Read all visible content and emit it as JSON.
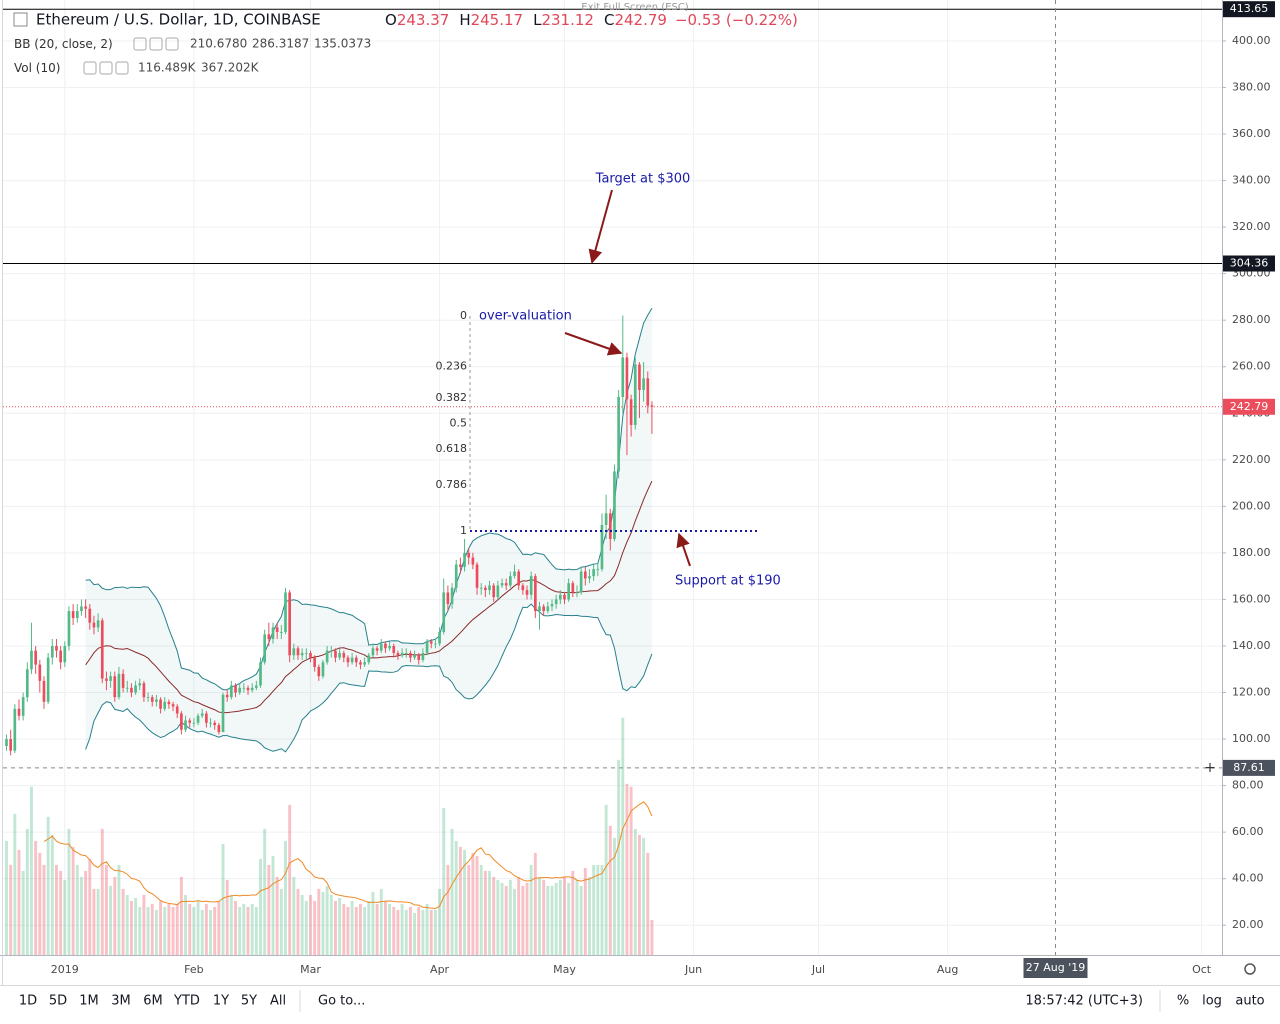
{
  "header": {
    "title": "Ethereum / U.S. Dollar, 1D, COINBASE",
    "ohlc": [
      {
        "name": "O",
        "value": 243.37
      },
      {
        "name": "H",
        "value": 245.17
      },
      {
        "name": "L",
        "value": 231.12
      },
      {
        "name": "C",
        "value": 242.79
      }
    ],
    "change": {
      "value": -0.53,
      "label": "−0.53"
    },
    "change_pct": {
      "value": -0.22,
      "label": "(−0.22%)"
    },
    "exit": "Exit Full Screen (ESC)"
  },
  "indicators": {
    "bb": {
      "name": "BB (20, close, 2)",
      "period": 20,
      "mult": 2,
      "values": [
        {
          "value": 210.678,
          "label": "210.6780",
          "color": "#8b2a2a"
        },
        {
          "value": 286.3187,
          "label": "286.3187",
          "color": "#26808c"
        },
        {
          "value": 135.0373,
          "label": "135.0373",
          "color": "#26808c"
        }
      ]
    },
    "vol": {
      "name": "Vol (10)",
      "period": 10,
      "values": [
        {
          "value": 116.489,
          "label": "116.489K",
          "color": "#e0475a"
        },
        {
          "value": 367.202,
          "label": "367.202K",
          "color": "#f08a24"
        }
      ]
    }
  },
  "chart_data": {
    "type": "candlestick",
    "open": [
      97,
      100,
      95,
      113,
      110,
      118,
      130,
      138,
      132,
      125,
      116,
      135,
      140,
      138,
      133,
      140,
      155,
      152,
      155,
      157,
      156,
      150,
      148,
      151,
      126,
      125,
      127,
      118,
      128,
      122,
      122,
      120,
      123,
      124,
      118,
      118,
      116,
      117,
      113,
      116,
      115,
      114,
      111,
      104,
      108,
      107,
      107,
      110,
      111,
      107,
      107,
      106,
      103,
      119,
      118,
      123,
      120,
      122,
      122,
      121,
      122,
      123,
      133,
      145,
      143,
      148,
      146,
      146,
      163,
      136,
      139,
      136,
      137,
      137,
      135,
      131,
      127,
      133,
      138,
      138,
      135,
      137,
      135,
      133,
      135,
      133,
      132,
      133,
      136,
      139,
      138,
      141,
      139,
      140,
      137,
      136,
      137,
      137,
      135,
      136,
      134,
      137,
      142,
      141,
      141,
      146,
      163,
      158,
      165,
      175,
      174,
      180,
      178,
      175,
      165,
      165,
      164,
      166,
      161,
      166,
      167,
      166,
      170,
      172,
      166,
      164,
      162,
      170,
      155,
      157,
      155,
      157,
      158,
      160,
      162,
      160,
      167,
      163,
      163,
      172,
      169,
      170,
      173,
      173,
      192,
      197,
      186,
      215,
      247,
      264,
      246,
      235,
      261,
      250,
      255,
      243.37
    ],
    "high": [
      102,
      104,
      115,
      117,
      120,
      133,
      150,
      140,
      134,
      127,
      137,
      143,
      143,
      140,
      142,
      157,
      158,
      158,
      160,
      160,
      158,
      153,
      154,
      152,
      129,
      129,
      129,
      131,
      130,
      125,
      124,
      125,
      126,
      125,
      120,
      119,
      119,
      118,
      118,
      117,
      116,
      115,
      112,
      110,
      109,
      109,
      111,
      113,
      112,
      109,
      108,
      107,
      120,
      121,
      125,
      124,
      124,
      124,
      123,
      124,
      125,
      135,
      147,
      150,
      150,
      150,
      149,
      165,
      164,
      141,
      140,
      139,
      139,
      138,
      136,
      132,
      134,
      140,
      140,
      139,
      139,
      138,
      136,
      137,
      136,
      134,
      135,
      137,
      141,
      140,
      143,
      142,
      142,
      141,
      138,
      139,
      139,
      138,
      138,
      137,
      139,
      143,
      143,
      143,
      148,
      169,
      166,
      167,
      177,
      178,
      186,
      182,
      180,
      176,
      167,
      166,
      168,
      167,
      168,
      169,
      169,
      172,
      175,
      173,
      167,
      166,
      172,
      171,
      159,
      158,
      159,
      160,
      162,
      164,
      163,
      169,
      168,
      166,
      174,
      174,
      173,
      175,
      176,
      197,
      205,
      199,
      218,
      250,
      282,
      266,
      248,
      264,
      262,
      262,
      258,
      245.17
    ],
    "low": [
      95,
      93,
      94,
      108,
      108,
      116,
      128,
      128,
      120,
      113,
      115,
      132,
      135,
      130,
      131,
      138,
      149,
      150,
      153,
      152,
      147,
      145,
      146,
      124,
      121,
      122,
      116,
      117,
      120,
      120,
      118,
      119,
      121,
      116,
      116,
      114,
      114,
      111,
      112,
      113,
      112,
      109,
      102,
      103,
      105,
      105,
      106,
      109,
      105,
      105,
      104,
      102,
      103,
      116,
      117,
      118,
      119,
      120,
      119,
      120,
      121,
      122,
      132,
      140,
      141,
      143,
      143,
      145,
      133,
      134,
      134,
      134,
      134,
      133,
      129,
      125,
      126,
      132,
      135,
      133,
      134,
      133,
      131,
      132,
      131,
      130,
      131,
      132,
      135,
      136,
      137,
      137,
      138,
      135,
      134,
      135,
      135,
      133,
      134,
      132,
      133,
      136,
      139,
      139,
      140,
      145,
      155,
      156,
      163,
      171,
      172,
      175,
      173,
      162,
      162,
      161,
      162,
      159,
      160,
      165,
      164,
      165,
      169,
      164,
      162,
      160,
      160,
      152,
      147,
      153,
      154,
      155,
      156,
      158,
      158,
      159,
      161,
      161,
      162,
      166,
      167,
      168,
      170,
      172,
      186,
      181,
      185,
      212,
      240,
      222,
      230,
      233,
      238,
      245,
      240,
      231.12
    ],
    "close": [
      100,
      95,
      113,
      110,
      118,
      130,
      138,
      132,
      125,
      116,
      135,
      140,
      138,
      133,
      140,
      155,
      152,
      155,
      157,
      156,
      150,
      148,
      151,
      126,
      125,
      127,
      118,
      128,
      122,
      122,
      120,
      123,
      124,
      118,
      118,
      116,
      117,
      113,
      116,
      115,
      114,
      111,
      104,
      108,
      107,
      107,
      110,
      111,
      107,
      107,
      106,
      103,
      119,
      118,
      123,
      120,
      122,
      122,
      121,
      122,
      123,
      133,
      145,
      143,
      148,
      146,
      146,
      163,
      136,
      139,
      136,
      137,
      137,
      135,
      131,
      127,
      133,
      138,
      138,
      135,
      137,
      135,
      133,
      135,
      133,
      132,
      133,
      136,
      139,
      138,
      141,
      139,
      140,
      137,
      136,
      137,
      137,
      135,
      136,
      134,
      137,
      142,
      141,
      141,
      146,
      163,
      158,
      165,
      175,
      174,
      180,
      178,
      175,
      165,
      165,
      164,
      166,
      161,
      166,
      167,
      166,
      170,
      172,
      166,
      164,
      162,
      170,
      155,
      157,
      155,
      157,
      158,
      160,
      162,
      160,
      167,
      163,
      163,
      172,
      169,
      170,
      173,
      173,
      192,
      197,
      186,
      215,
      247,
      264,
      246,
      235,
      261,
      250,
      255,
      243.32,
      242.79
    ],
    "volume": [
      380,
      300,
      470,
      350,
      280,
      420,
      560,
      380,
      340,
      300,
      460,
      400,
      300,
      280,
      250,
      420,
      360,
      300,
      260,
      280,
      320,
      220,
      220,
      420,
      300,
      230,
      260,
      300,
      220,
      200,
      180,
      190,
      160,
      200,
      160,
      170,
      150,
      180,
      160,
      170,
      160,
      170,
      260,
      200,
      170,
      160,
      180,
      150,
      170,
      150,
      160,
      180,
      370,
      250,
      200,
      180,
      160,
      170,
      160,
      170,
      160,
      320,
      420,
      300,
      330,
      260,
      220,
      380,
      500,
      260,
      220,
      200,
      180,
      200,
      180,
      220,
      210,
      230,
      200,
      180,
      190,
      170,
      160,
      180,
      160,
      170,
      160,
      180,
      210,
      170,
      220,
      180,
      170,
      160,
      150,
      170,
      150,
      160,
      140,
      160,
      150,
      170,
      150,
      150,
      220,
      490,
      300,
      420,
      380,
      360,
      350,
      300,
      340,
      330,
      300,
      280,
      280,
      260,
      250,
      240,
      230,
      250,
      220,
      260,
      230,
      240,
      300,
      340,
      260,
      250,
      230,
      230,
      240,
      250,
      260,
      240,
      280,
      250,
      230,
      290,
      260,
      300,
      300,
      300,
      500,
      430,
      390,
      650,
      790,
      570,
      560,
      420,
      400,
      390,
      340,
      116.489
    ],
    "up_color": "#53b987",
    "down_color": "#eb4d5c",
    "xlim": [
      -0.84,
      291.9
    ],
    "xticks": [
      {
        "value": 14,
        "label": "2019"
      },
      {
        "value": 45,
        "label": "Feb"
      },
      {
        "value": 73,
        "label": "Mar"
      },
      {
        "value": 104,
        "label": "Apr"
      },
      {
        "value": 134,
        "label": "May"
      },
      {
        "value": 165,
        "label": "Jun"
      },
      {
        "value": 195,
        "label": "Jul"
      },
      {
        "value": 226,
        "label": "Aug"
      },
      {
        "value": 287,
        "label": "Oct"
      }
    ],
    "ylim": [
      7.2,
      417.6
    ],
    "yticks": [
      {
        "value": 20,
        "label": "20.00"
      },
      {
        "value": 40,
        "label": "40.00"
      },
      {
        "value": 60,
        "label": "60.00"
      },
      {
        "value": 80,
        "label": "80.00"
      },
      {
        "value": 100,
        "label": "100.00"
      },
      {
        "value": 120,
        "label": "120.00"
      },
      {
        "value": 140,
        "label": "140.00"
      },
      {
        "value": 160,
        "label": "160.00"
      },
      {
        "value": 180,
        "label": "180.00"
      },
      {
        "value": 200,
        "label": "200.00"
      },
      {
        "value": 220,
        "label": "220.00"
      },
      {
        "value": 240,
        "label": "240.00"
      },
      {
        "value": 260,
        "label": "260.00"
      },
      {
        "value": 280,
        "label": "280.00"
      },
      {
        "value": 300,
        "label": "300.00"
      },
      {
        "value": 320,
        "label": "320.00"
      },
      {
        "value": 340,
        "label": "340.00"
      },
      {
        "value": 360,
        "label": "360.00"
      },
      {
        "value": 380,
        "label": "380.00"
      },
      {
        "value": 400,
        "label": "400.00"
      }
    ],
    "volume_lim": [
      0,
      3180
    ],
    "grid": true,
    "top_line": {
      "value": 413.65
    },
    "target_line": {
      "value": 304.36
    },
    "crosshair": {
      "price": 87.61,
      "date": "27 Aug '19"
    },
    "fib": {
      "levels": [
        0,
        0.236,
        0.382,
        0.5,
        0.618,
        0.786,
        1
      ],
      "range": [
        281.8,
        189.4
      ]
    },
    "annotations": [
      "Target at $300",
      "over-valuation",
      "Support at $190"
    ]
  },
  "toolbar": {
    "ranges": [
      "1D",
      "5D",
      "1M",
      "3M",
      "6M",
      "YTD",
      "1Y",
      "5Y",
      "All"
    ],
    "goto": "Go to...",
    "time": "18:57:42 (UTC+3)",
    "options": [
      "%",
      "log",
      "auto"
    ]
  }
}
